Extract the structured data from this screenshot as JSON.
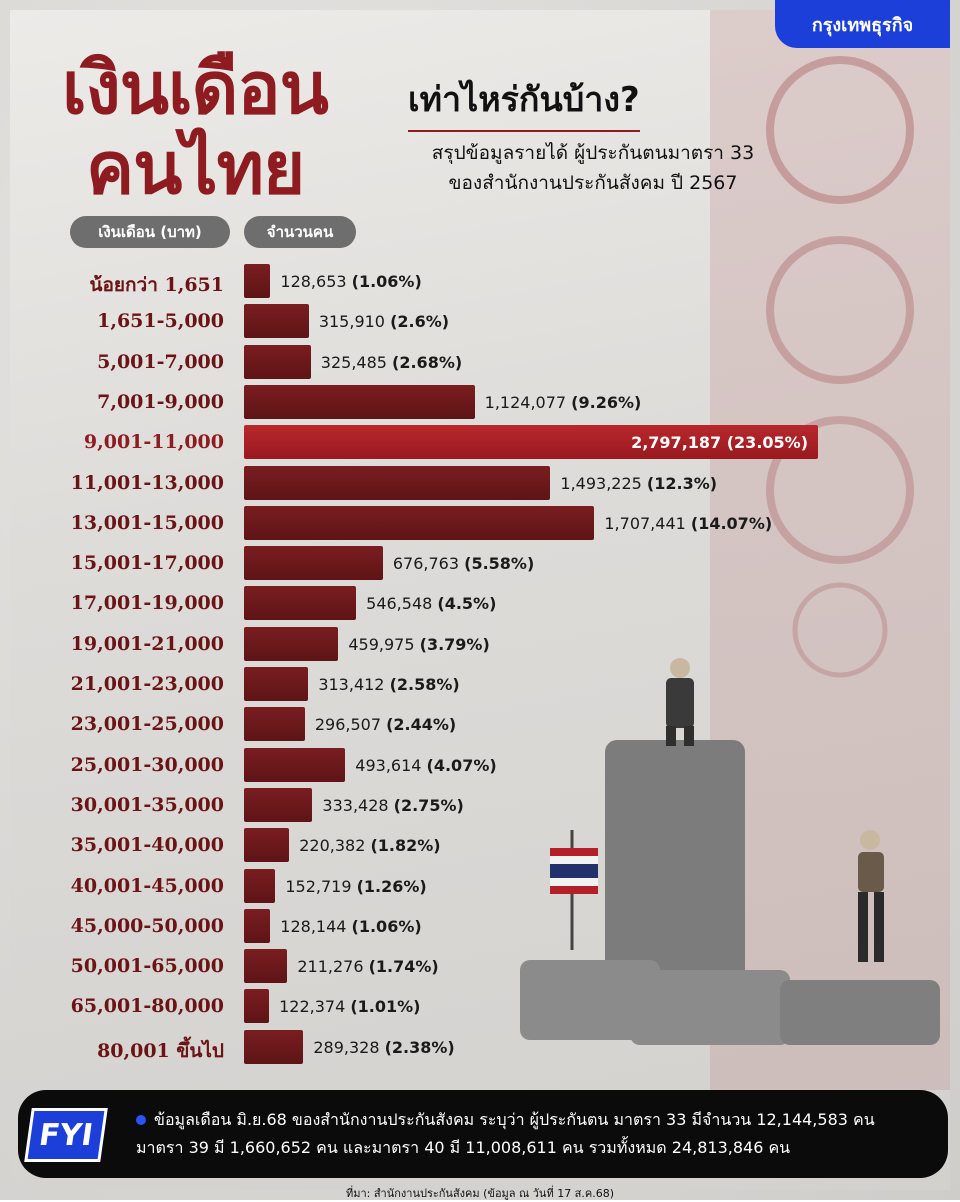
{
  "publisher": "กรุงเทพธุรกิจ",
  "title_line1": "เงินเดือน",
  "title_line2": "คนไทย",
  "question": "เท่าไหร่กันบ้าง?",
  "subtitle_line1": "สรุปข้อมูลรายได้ ผู้ประกันตนมาตรา 33",
  "subtitle_line2": "ของสำนักงานประกันสังคม ปี 2567",
  "header_salary": "เงินเดือน (บาท)",
  "header_count": "จำนวนคน",
  "chart_data": {
    "type": "bar",
    "orientation": "horizontal",
    "categories": [
      "น้อยกว่า 1,651",
      "1,651-5,000",
      "5,001-7,000",
      "7,001-9,000",
      "9,001-11,000",
      "11,001-13,000",
      "13,001-15,000",
      "15,001-17,000",
      "17,001-19,000",
      "19,001-21,000",
      "21,001-23,000",
      "23,001-25,000",
      "25,001-30,000",
      "30,001-35,000",
      "35,001-40,000",
      "40,001-45,000",
      "45,000-50,000",
      "50,001-65,000",
      "65,001-80,000",
      "80,001 ขึ้นไป"
    ],
    "values": [
      128653,
      315910,
      325485,
      1124077,
      2797187,
      1493225,
      1707441,
      676763,
      546548,
      459975,
      313412,
      296507,
      493614,
      333428,
      220382,
      152719,
      128144,
      211276,
      122374,
      289328
    ],
    "value_labels": [
      "128,653",
      "315,910",
      "325,485",
      "1,124,077",
      "2,797,187",
      "1,493,225",
      "1,707,441",
      "676,763",
      "546,548",
      "459,975",
      "313,412",
      "296,507",
      "493,614",
      "333,428",
      "220,382",
      "152,719",
      "128,144",
      "211,276",
      "122,374",
      "289,328"
    ],
    "percent_labels": [
      "(1.06%)",
      "(2.6%)",
      "(2.68%)",
      "(9.26%)",
      "(23.05%)",
      "(12.3%)",
      "(14.07%)",
      "(5.58%)",
      "(4.5%)",
      "(3.79%)",
      "(2.58%)",
      "(2.44%)",
      "(4.07%)",
      "(2.75%)",
      "(1.82%)",
      "(1.26%)",
      "(1.06%)",
      "(1.74%)",
      "(1.01%)",
      "(2.38%)"
    ],
    "highlight_index": 4,
    "bar_color": "#6b181b",
    "highlight_color": "#a91f24"
  },
  "footer_badge": "FYI",
  "footer_line1": "ข้อมูลเดือน มิ.ย.68 ของสำนักงานประกันสังคม ระบุว่า ผู้ประกันตน มาตรา 33 มีจำนวน 12,144,583 คน",
  "footer_line2": "มาตรา 39 มี 1,660,652 คน และมาตรา 40 มี 11,008,611 คน รวมทั้งหมด 24,813,846 คน",
  "source": "ที่มา: สำนักงานประกันสังคม (ข้อมูล ณ วันที่ 17 ส.ค.68)"
}
